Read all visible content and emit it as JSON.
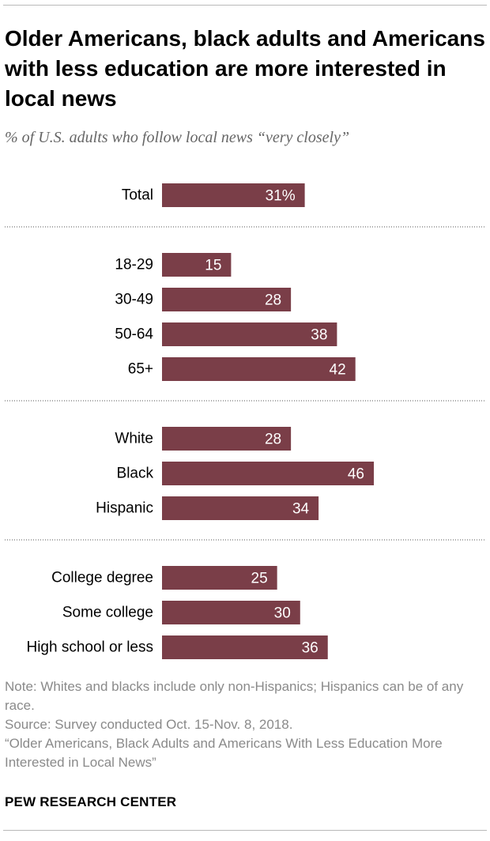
{
  "title": "Older Americans, black adults and Americans with less education are more interested in local news",
  "subtitle": "% of U.S. adults who follow local news “very closely”",
  "notes": {
    "note": "Note: Whites and blacks include only non-Hispanics; Hispanics can be of any race.",
    "source": "Source: Survey conducted Oct. 15-Nov. 8, 2018.",
    "report": "“Older Americans, Black Adults and Americans With Less Education More Interested in Local News”"
  },
  "brand": "PEW RESEARCH CENTER",
  "colors": {
    "bar": "#7a3e48",
    "label": "#ffffff",
    "divider": "#555555"
  },
  "chart_data": {
    "type": "bar",
    "orientation": "horizontal",
    "title": "Older Americans, black adults and Americans with less education are more interested in local news",
    "ylabel": "% of U.S. adults who follow local news “very closely”",
    "xlim": [
      0,
      50
    ],
    "grid": false,
    "groups": [
      {
        "name": "total",
        "items": [
          {
            "label": "Total",
            "value": 31,
            "display": "31%"
          }
        ]
      },
      {
        "name": "age",
        "items": [
          {
            "label": "18-29",
            "value": 15,
            "display": "15"
          },
          {
            "label": "30-49",
            "value": 28,
            "display": "28"
          },
          {
            "label": "50-64",
            "value": 38,
            "display": "38"
          },
          {
            "label": "65+",
            "value": 42,
            "display": "42"
          }
        ]
      },
      {
        "name": "race",
        "items": [
          {
            "label": "White",
            "value": 28,
            "display": "28"
          },
          {
            "label": "Black",
            "value": 46,
            "display": "46"
          },
          {
            "label": "Hispanic",
            "value": 34,
            "display": "34"
          }
        ]
      },
      {
        "name": "education",
        "items": [
          {
            "label": "College degree",
            "value": 25,
            "display": "25"
          },
          {
            "label": "Some college",
            "value": 30,
            "display": "30"
          },
          {
            "label": "High school or less",
            "value": 36,
            "display": "36"
          }
        ]
      }
    ]
  }
}
